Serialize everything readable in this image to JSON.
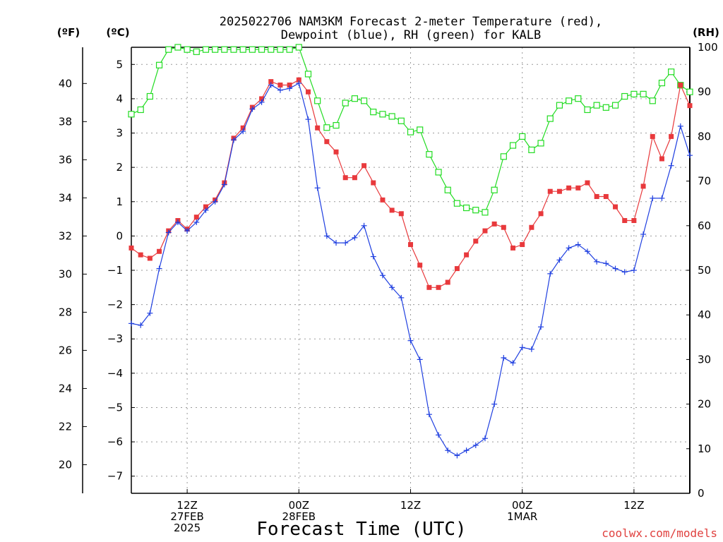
{
  "chart_data": {
    "type": "line",
    "title": "2025022706 NAM3KM Forecast 2-meter Temperature (red),\nDewpoint (blue), RH (green) for KALB",
    "xlabel": "Forecast Time (UTC)",
    "x_time_step_hours": 1,
    "x_ticks": [
      {
        "hour": 6,
        "lines": [
          "12Z",
          "27FEB",
          "2025"
        ]
      },
      {
        "hour": 18,
        "lines": [
          "00Z",
          "28FEB"
        ]
      },
      {
        "hour": 30,
        "lines": [
          "12Z"
        ]
      },
      {
        "hour": 42,
        "lines": [
          "00Z",
          "1MAR"
        ]
      },
      {
        "hour": 54,
        "lines": [
          "12Z"
        ]
      }
    ],
    "xlim": [
      0,
      60
    ],
    "left_axis_celsius": {
      "label": "(ºC)",
      "range": [
        -7.5,
        5.5
      ],
      "ticks": [
        -7,
        -6,
        -5,
        -4,
        -3,
        -2,
        -1,
        0,
        1,
        2,
        3,
        4,
        5
      ]
    },
    "left_axis_fahrenheit": {
      "label": "(ºF)",
      "ticks": [
        20,
        22,
        24,
        26,
        28,
        30,
        32,
        34,
        36,
        38,
        40
      ]
    },
    "right_axis_rh": {
      "label": "(RH)",
      "range": [
        0,
        100
      ],
      "ticks": [
        0,
        10,
        20,
        30,
        40,
        50,
        60,
        70,
        80,
        90,
        100
      ]
    },
    "grid": true,
    "credit": "coolwx.com/models",
    "series": [
      {
        "name": "Temperature",
        "unit": "C",
        "color": "#e8393c",
        "marker": "filled-square",
        "values": [
          -0.35,
          -0.55,
          -0.65,
          -0.45,
          0.15,
          0.45,
          0.2,
          0.55,
          0.85,
          1.05,
          1.55,
          2.85,
          3.15,
          3.75,
          4.0,
          4.5,
          4.4,
          4.4,
          4.55,
          4.2,
          3.15,
          2.75,
          2.45,
          1.7,
          1.7,
          2.05,
          1.55,
          1.05,
          0.75,
          0.65,
          -0.25,
          -0.85,
          -1.5,
          -1.5,
          -1.35,
          -0.95,
          -0.55,
          -0.15,
          0.15,
          0.35,
          0.25,
          -0.35,
          -0.25,
          0.25,
          0.65,
          1.3,
          1.3,
          1.4,
          1.4,
          1.55,
          1.15,
          1.15,
          0.85,
          0.45,
          0.45,
          1.45,
          2.9,
          2.25,
          2.9,
          4.4,
          3.8
        ]
      },
      {
        "name": "Dewpoint",
        "unit": "C",
        "color": "#1f3fe0",
        "marker": "plus",
        "values": [
          -2.55,
          -2.6,
          -2.25,
          -0.95,
          0.1,
          0.4,
          0.15,
          0.4,
          0.75,
          1.0,
          1.5,
          2.8,
          3.05,
          3.7,
          3.9,
          4.4,
          4.25,
          4.3,
          4.45,
          3.4,
          1.4,
          0.0,
          -0.2,
          -0.2,
          -0.05,
          0.3,
          -0.6,
          -1.15,
          -1.5,
          -1.8,
          -3.05,
          -3.6,
          -5.2,
          -5.8,
          -6.25,
          -6.4,
          -6.25,
          -6.1,
          -5.9,
          -4.9,
          -3.55,
          -3.7,
          -3.25,
          -3.3,
          -2.65,
          -1.1,
          -0.7,
          -0.35,
          -0.25,
          -0.45,
          -0.75,
          -0.8,
          -0.95,
          -1.05,
          -1.0,
          0.05,
          1.1,
          1.1,
          2.05,
          3.2,
          2.35
        ]
      },
      {
        "name": "RH",
        "unit": "%",
        "color": "#22dc22",
        "marker": "open-square",
        "values": [
          85,
          86,
          89,
          96,
          99.5,
          100,
          99.5,
          99,
          99.5,
          99.5,
          99.5,
          99.5,
          99.5,
          99.5,
          99.5,
          99.5,
          99.5,
          99.5,
          100,
          94,
          88,
          82,
          82.5,
          87.5,
          88.5,
          88,
          85.5,
          85,
          84.5,
          83.5,
          81,
          81.5,
          76,
          72,
          68,
          65,
          64,
          63.5,
          63,
          68,
          75.5,
          78,
          80,
          77,
          78.5,
          84,
          87,
          88,
          88.5,
          86,
          87,
          86.5,
          87,
          89,
          89.5,
          89.5,
          88,
          92,
          94.5,
          91.5,
          90
        ]
      }
    ]
  }
}
